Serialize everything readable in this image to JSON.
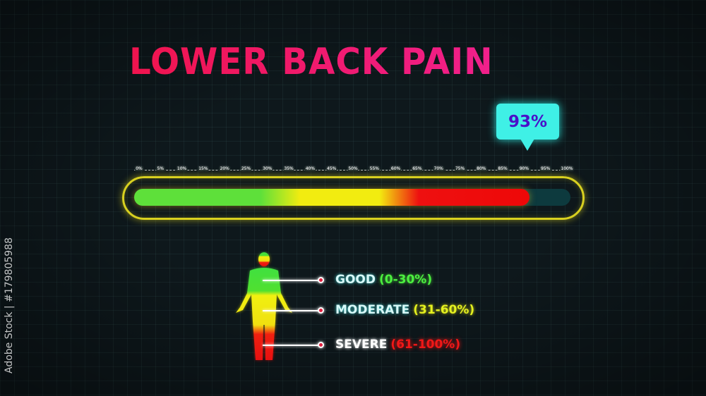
{
  "title": "LOWER BACK PAIN",
  "gauge": {
    "value_percent": 93,
    "value_label": "93%",
    "ticks": [
      "0%",
      "5%",
      "10%",
      "15%",
      "20%",
      "25%",
      "30%",
      "35%",
      "40%",
      "45%",
      "50%",
      "55%",
      "60%",
      "65%",
      "70%",
      "75%",
      "80%",
      "85%",
      "90%",
      "95%",
      "100%"
    ],
    "colors": {
      "good": "#5ee03a",
      "moderate": "#f2ec10",
      "severe": "#ee1010",
      "frame": "#d8d020",
      "callout": "#3ff0e6"
    }
  },
  "legend": [
    {
      "label": "GOOD",
      "range": "(0-30%)",
      "color": "#4cf040"
    },
    {
      "label": "MODERATE",
      "range": "(31-60%)",
      "color": "#e4f020"
    },
    {
      "label": "SEVERE",
      "range": "(61-100%)",
      "color": "#f01818"
    }
  ],
  "watermark": "Adobe Stock | #179805988"
}
